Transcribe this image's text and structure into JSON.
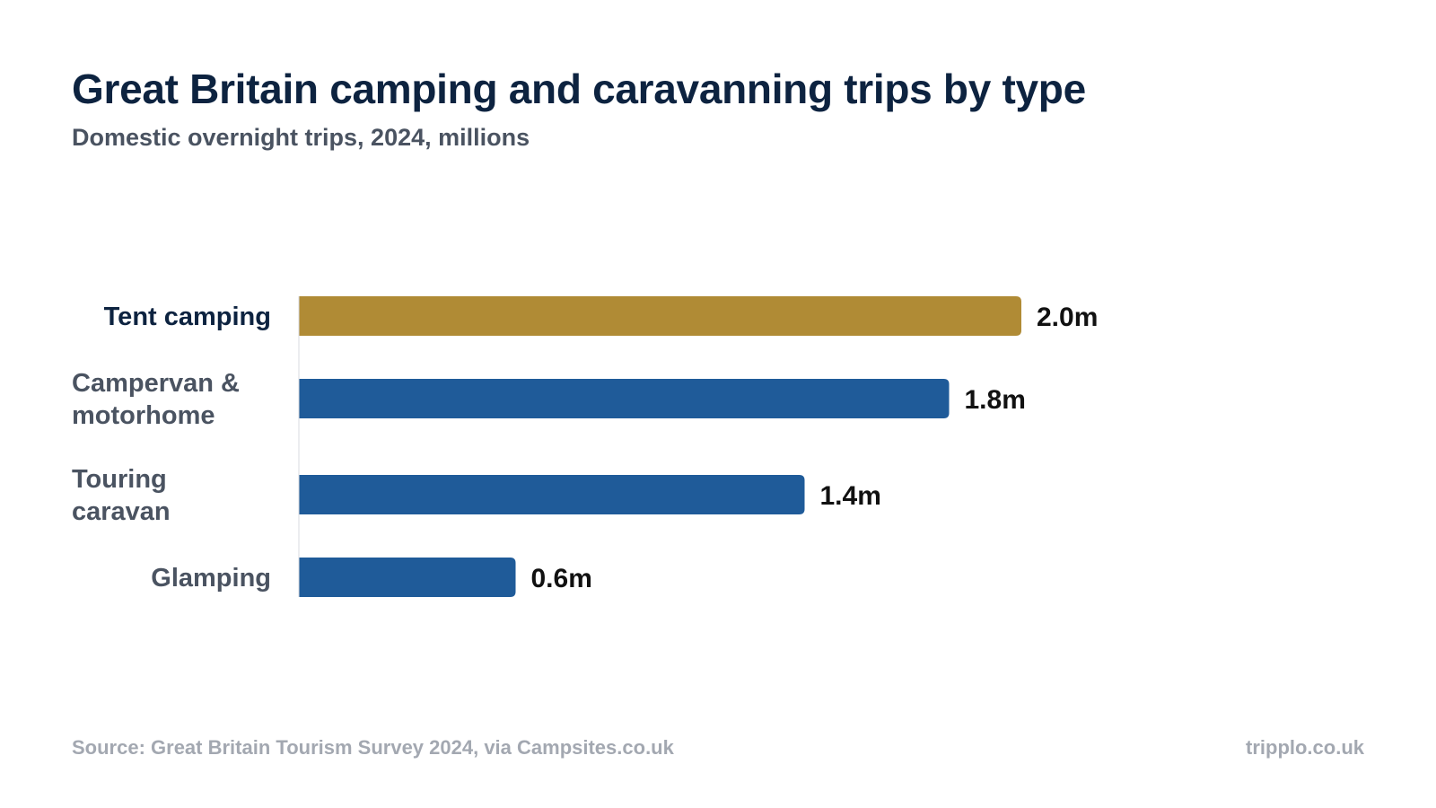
{
  "title": "Great Britain camping and caravanning trips by type",
  "subtitle": "Domestic overnight trips, 2024, millions",
  "footer": {
    "source": "Source: Great Britain Tourism Survey 2024, via Campsites.co.uk",
    "brand": "tripplo.co.uk"
  },
  "colors": {
    "highlight": "#B08B35",
    "bar": "#1F5B99",
    "label_highlight": "#0D2340",
    "label": "#4A5361",
    "value_label": "#111111"
  },
  "chart_data": {
    "type": "bar",
    "orientation": "horizontal",
    "categories": [
      "Tent camping",
      "Campervan & motorhome",
      "Touring caravan",
      "Glamping"
    ],
    "category_lines": [
      [
        "Tent camping"
      ],
      [
        "Campervan &",
        "motorhome"
      ],
      [
        "Touring",
        "caravan"
      ],
      [
        "Glamping"
      ]
    ],
    "values": [
      2.0,
      1.8,
      1.4,
      0.6
    ],
    "value_labels": [
      "2.0m",
      "1.8m",
      "1.4m",
      "0.6m"
    ],
    "highlighted": [
      true,
      false,
      false,
      false
    ],
    "unit": "m",
    "title": "Great Britain camping and caravanning trips by type",
    "subtitle": "Domestic overnight trips, 2024, millions",
    "xlabel": "",
    "ylabel": "",
    "xlim": [
      0,
      2.0
    ],
    "grid": false,
    "legend": "none"
  }
}
